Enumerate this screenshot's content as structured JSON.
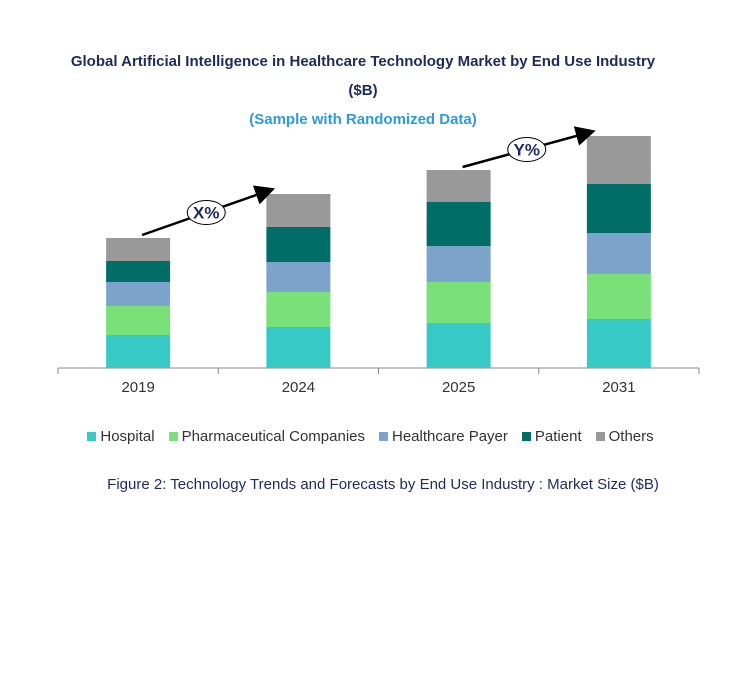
{
  "chart_data": {
    "type": "bar",
    "stacked": true,
    "title": "Global Artificial Intelligence in Healthcare Technology Market by End Use Industry ($B)",
    "title_line1": "Global Artificial Intelligence in Healthcare Technology Market by End Use Industry",
    "title_line2": "($B)",
    "subtitle": "(Sample with Randomized Data)",
    "categories": [
      "2019",
      "2024",
      "2025",
      "2031"
    ],
    "series": [
      {
        "name": "Hospital",
        "color": "#36C9C6",
        "values": [
          33,
          41,
          45,
          49
        ]
      },
      {
        "name": "Pharmaceutical Companies",
        "color": "#7AE07A",
        "values": [
          29,
          35,
          41,
          45
        ]
      },
      {
        "name": "Healthcare Payer",
        "color": "#7BA3CB",
        "values": [
          24,
          30,
          36,
          41
        ]
      },
      {
        "name": "Patient",
        "color": "#006E66",
        "values": [
          21,
          35,
          44,
          49
        ]
      },
      {
        "name": "Others",
        "color": "#999999",
        "values": [
          23,
          33,
          32,
          48
        ]
      }
    ],
    "ylim": [
      0,
      240
    ],
    "grid": false,
    "legend": "bottom",
    "annotations": [
      {
        "label": "X%",
        "from": "2019",
        "to": "2024"
      },
      {
        "label": "Y%",
        "from": "2025",
        "to": "2031"
      }
    ],
    "caption": "Figure 2: Technology  Trends  and Forecasts by  End Use Industry   : Market Size ($B)"
  }
}
